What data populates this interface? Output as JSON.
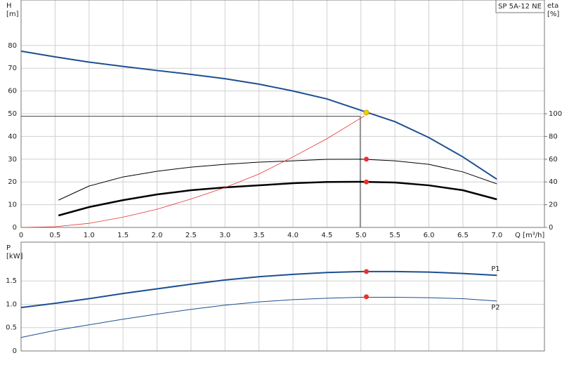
{
  "chart_data": [
    {
      "type": "line",
      "title": "SP 5A-12 NE",
      "ylabel": "H",
      "yunit": "[m]",
      "y2label": "eta",
      "y2unit": "[%]",
      "xlabel": "Q [m³/h]",
      "xlim": [
        0,
        7.7
      ],
      "xticks": [
        0,
        0.5,
        {
          "value": 1,
          "label": "1.0"
        },
        1.5,
        {
          "value": 2,
          "label": "2.0"
        },
        2.5,
        {
          "value": 3,
          "label": "3.0"
        },
        3.5,
        {
          "value": 4,
          "label": "4.0"
        },
        4.5,
        {
          "value": 5,
          "label": "5.0"
        },
        5.5,
        {
          "value": 6,
          "label": "6.0"
        },
        6.5,
        {
          "value": 7,
          "label": "7.0"
        }
      ],
      "ylim": [
        0,
        100
      ],
      "yticks": [
        0,
        10,
        20,
        30,
        40,
        50,
        60,
        70,
        80
      ],
      "y2lim": [
        0,
        200
      ],
      "y2ticks": [
        0,
        20,
        40,
        60,
        80,
        100
      ],
      "grid": true,
      "series": [
        {
          "color": "#1d4f91",
          "line_width": 2,
          "x": [
            0,
            0.5,
            1,
            1.5,
            2,
            2.5,
            3,
            3.5,
            4,
            4.5,
            5,
            5.5,
            6,
            6.5,
            7
          ],
          "values": [
            77.5,
            75,
            72.7,
            70.8,
            69,
            67.3,
            65.4,
            63,
            60,
            56.5,
            51.5,
            46.5,
            39.5,
            31,
            21.2
          ]
        },
        {
          "color": "#000000",
          "line_width": 1,
          "axis": "y2",
          "x": [
            0.55,
            1,
            1.5,
            2,
            2.5,
            3,
            3.5,
            4,
            4.5,
            5,
            5.5,
            6,
            6.5,
            7
          ],
          "values": [
            24,
            36.4,
            44.4,
            49.4,
            53,
            55.5,
            57.4,
            58.6,
            59.9,
            60,
            58.6,
            55.5,
            48.8,
            38.3
          ]
        },
        {
          "color": "#000000",
          "line_width": 2.5,
          "axis": "y2",
          "x": [
            0.55,
            1,
            1.5,
            2,
            2.5,
            3,
            3.5,
            4,
            4.5,
            5,
            5.5,
            6,
            6.5,
            7
          ],
          "values": [
            10.5,
            17.9,
            24,
            29,
            32.7,
            35.2,
            37,
            38.9,
            40,
            40.1,
            39.5,
            37,
            32.7,
            24.7
          ]
        },
        {
          "color": "#e8312f",
          "line_width": 0.8,
          "x": [
            0,
            0.5,
            1,
            1.5,
            2,
            2.5,
            3,
            3.5,
            4,
            4.5,
            5.05
          ],
          "values": [
            0,
            0.3,
            1.8,
            4.5,
            8,
            12.5,
            17.5,
            23.5,
            31,
            39,
            49
          ]
        }
      ],
      "points": [
        {
          "x": 5.08,
          "y": 50.5,
          "color": "#f5d000"
        },
        {
          "x": 5.08,
          "y": 60,
          "axis": "y2",
          "color": "#e8312f"
        },
        {
          "x": 5.08,
          "y": 40,
          "axis": "y2",
          "color": "#e8312f"
        }
      ],
      "reference": {
        "x": 4.99,
        "y": 48.9
      }
    },
    {
      "type": "line",
      "ylabel": "P",
      "yunit": "[kW]",
      "xlim": [
        0,
        7.7
      ],
      "xticks": [
        0,
        0.5,
        1,
        1.5,
        2,
        2.5,
        3,
        3.5,
        4,
        4.5,
        5,
        5.5,
        6,
        6.5,
        7
      ],
      "ylim": [
        0,
        2.33
      ],
      "yticks": [
        0,
        0.5,
        {
          "value": 1,
          "label": "1.0"
        },
        1.5
      ],
      "grid": true,
      "series": [
        {
          "name": "P1",
          "color": "#1d4f91",
          "line_width": 2,
          "x": [
            0,
            0.5,
            1,
            1.5,
            2,
            2.5,
            3,
            3.5,
            4,
            4.5,
            5,
            5.5,
            6,
            6.5,
            7
          ],
          "values": [
            0.93,
            1.02,
            1.12,
            1.23,
            1.33,
            1.43,
            1.52,
            1.59,
            1.64,
            1.68,
            1.7,
            1.7,
            1.69,
            1.66,
            1.62
          ]
        },
        {
          "name": "P2",
          "color": "#1d4f91",
          "line_width": 1,
          "x": [
            0,
            0.5,
            1,
            1.5,
            2,
            2.5,
            3,
            3.5,
            4,
            4.5,
            5,
            5.5,
            6,
            6.5,
            7
          ],
          "values": [
            0.29,
            0.44,
            0.56,
            0.68,
            0.79,
            0.89,
            0.98,
            1.05,
            1.1,
            1.13,
            1.15,
            1.15,
            1.14,
            1.12,
            1.07
          ]
        }
      ],
      "points": [
        {
          "x": 5.08,
          "y": 1.7,
          "color": "#e8312f"
        },
        {
          "x": 5.08,
          "y": 1.16,
          "color": "#e8312f"
        }
      ]
    }
  ]
}
